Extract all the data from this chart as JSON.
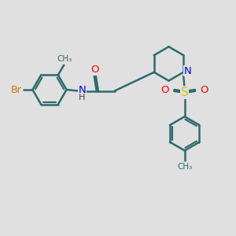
{
  "background_color": "#e0e0e0",
  "bond_color": "#2d6b6b",
  "bond_width": 1.8,
  "atom_colors": {
    "Br": "#cc7700",
    "N": "#0000ff",
    "O": "#ff0000",
    "S": "#cccc00",
    "C": "#2d6b6b",
    "H": "#444444"
  },
  "font_size": 9,
  "fig_width": 3.0,
  "fig_height": 3.0
}
